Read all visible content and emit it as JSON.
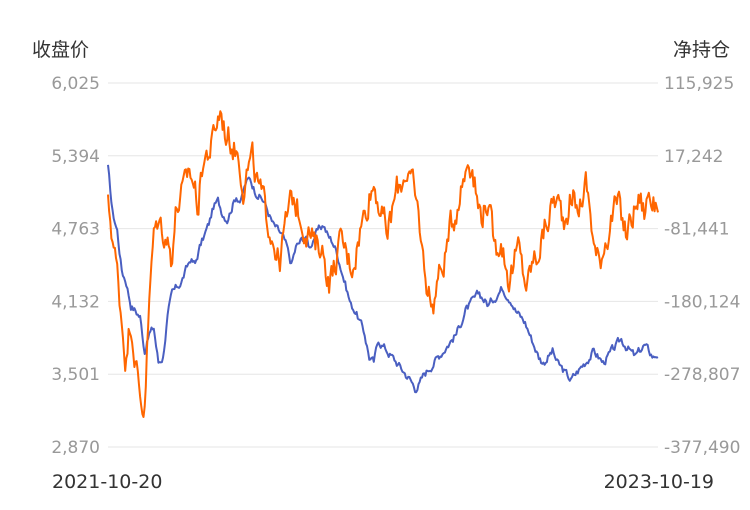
{
  "chart_data": {
    "type": "line",
    "left_axis_title": "收盘价",
    "right_axis_title": "净持仓",
    "left_ticks": [
      "6,025",
      "5,394",
      "4,763",
      "4,132",
      "3,501",
      "2,870"
    ],
    "right_ticks": [
      "115,925",
      "17,242",
      "-81,441",
      "-180,124",
      "-278,807",
      "-377,490"
    ],
    "ylim_left": [
      2870,
      6025
    ],
    "ylim_right": [
      -377490,
      115925
    ],
    "x_start_label": "2021-10-20",
    "x_end_label": "2023-10-19",
    "grid": true,
    "series": [
      {
        "axis": "left",
        "color": "#4a5fc1",
        "values": [
          5290,
          4900,
          4750,
          4400,
          4300,
          4100,
          4050,
          4000,
          3700,
          3850,
          3900,
          3600,
          3650,
          4000,
          4200,
          4250,
          4300,
          4400,
          4500,
          4450,
          4600,
          4700,
          4800,
          4950,
          5000,
          4900,
          4850,
          4950,
          5050,
          5000,
          5150,
          5200,
          5100,
          5050,
          5000,
          4900,
          4800,
          4750,
          4700,
          4600,
          4450,
          4600,
          4650,
          4700,
          4600,
          4700,
          4750,
          4800,
          4700,
          4650,
          4550,
          4400,
          4250,
          4100,
          4050,
          3950,
          3850,
          3650,
          3600,
          3800,
          3750,
          3700,
          3650,
          3600,
          3550,
          3500,
          3450,
          3380,
          3420,
          3500,
          3550,
          3600,
          3650,
          3700,
          3750,
          3800,
          3850,
          3950,
          4050,
          4100,
          4150,
          4200,
          4150,
          4100,
          4150,
          4200,
          4250,
          4200,
          4150,
          4050,
          4000,
          3950,
          3850,
          3750,
          3650,
          3600,
          3650,
          3700,
          3600,
          3550,
          3500,
          3450,
          3500,
          3550,
          3600,
          3650,
          3700,
          3650,
          3600,
          3650,
          3700,
          3750,
          3800,
          3750,
          3700,
          3650,
          3700,
          3750,
          3700,
          3650,
          3680
        ],
        "noise": 40
      },
      {
        "axis": "right",
        "color": "#ff6600",
        "values": [
          -50000,
          -90000,
          -140000,
          -200000,
          -260000,
          -200000,
          -250000,
          -310000,
          -330000,
          -200000,
          -100000,
          -70000,
          -80000,
          -90000,
          -120000,
          -60000,
          -40000,
          -30000,
          0,
          -20000,
          -50000,
          10000,
          20000,
          30000,
          60000,
          80000,
          50000,
          40000,
          30000,
          20000,
          -20000,
          0,
          10000,
          -20000,
          -40000,
          -60000,
          -80000,
          -100000,
          -130000,
          -90000,
          -60000,
          -40000,
          -50000,
          -70000,
          -80000,
          -90000,
          -110000,
          -100000,
          -120000,
          -150000,
          -140000,
          -110000,
          -100000,
          -120000,
          -130000,
          -110000,
          -80000,
          -60000,
          -30000,
          -20000,
          -40000,
          -70000,
          -90000,
          -60000,
          -30000,
          -20000,
          0,
          -10000,
          -40000,
          -70000,
          -130000,
          -160000,
          -190000,
          -150000,
          -140000,
          -110000,
          -80000,
          -60000,
          -30000,
          -10000,
          20000,
          0,
          -50000,
          -60000,
          -40000,
          -80000,
          -110000,
          -90000,
          -120000,
          -150000,
          -130000,
          -110000,
          -140000,
          -160000,
          -130000,
          -120000,
          -100000,
          -80000,
          -60000,
          -40000,
          -50000,
          -70000,
          -50000,
          -30000,
          -60000,
          -40000,
          -20000,
          -60000,
          -110000,
          -130000,
          -100000,
          -80000,
          -60000,
          -50000,
          -70000,
          -90000,
          -70000,
          -50000,
          -40000,
          -60000,
          -30000,
          -50000,
          -40000
        ],
        "noise": 22000
      }
    ]
  }
}
